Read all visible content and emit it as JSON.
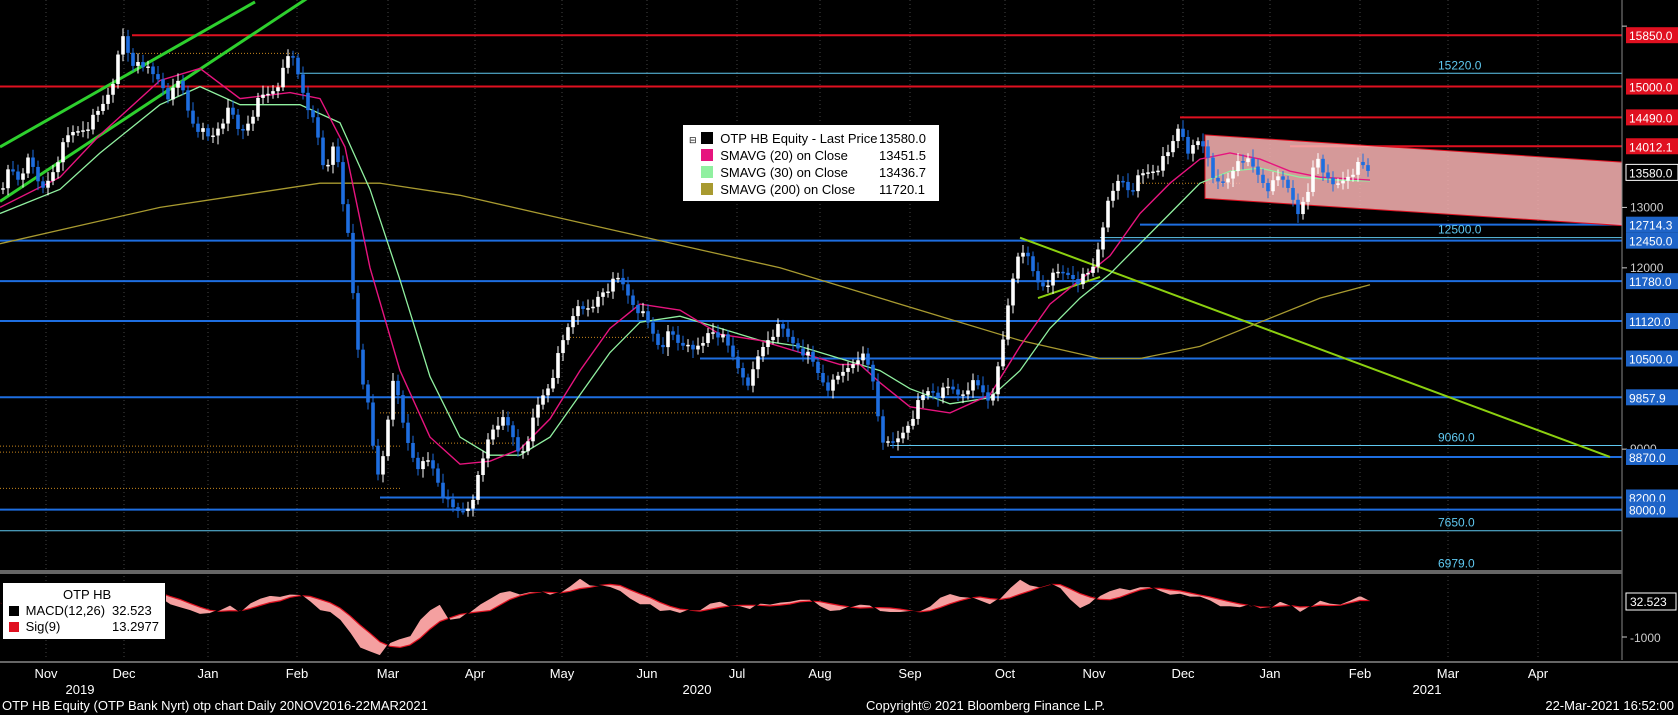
{
  "chart_data": {
    "type": "candlestick",
    "ylim": [
      7000,
      16300
    ],
    "ytick_values": [
      13000,
      12000,
      9000
    ],
    "ytick_labels": [
      "13000",
      "12000",
      "9000"
    ],
    "x_months": [
      "Nov",
      "Dec",
      "Jan",
      "Feb",
      "Mar",
      "Apr",
      "May",
      "Jun",
      "Jul",
      "Aug",
      "Sep",
      "Oct",
      "Nov",
      "Dec",
      "Jan",
      "Feb",
      "Mar",
      "Apr"
    ],
    "x_years": [
      "2019",
      "2020",
      "2021"
    ],
    "price_labels_right": [
      {
        "value": 15850.0,
        "label": "15850.0",
        "color": "#e01020"
      },
      {
        "value": 15000.0,
        "label": "15000.0",
        "color": "#e01020"
      },
      {
        "value": 14490.0,
        "label": "14490.0",
        "color": "#e01020"
      },
      {
        "value": 14012.1,
        "label": "14012.1",
        "color": "#e01020"
      },
      {
        "value": 13580.0,
        "label": "13580.0",
        "color": "#ffffff"
      },
      {
        "value": 12714.3,
        "label": "12714.3",
        "color": "#1e64c8"
      },
      {
        "value": 12450.0,
        "label": "12450.0",
        "color": "#1e64c8"
      },
      {
        "value": 11780.0,
        "label": "11780.0",
        "color": "#1e64c8"
      },
      {
        "value": 11120.0,
        "label": "11120.0",
        "color": "#1e64c8"
      },
      {
        "value": 10500.0,
        "label": "10500.0",
        "color": "#1e64c8"
      },
      {
        "value": 9857.9,
        "label": "9857.9",
        "color": "#1e64c8"
      },
      {
        "value": 8870.0,
        "label": "8870.0",
        "color": "#1e64c8"
      },
      {
        "value": 8200.0,
        "label": "8200.0",
        "color": "#1e64c8"
      },
      {
        "value": 8000.0,
        "label": "8000.0",
        "color": "#1e64c8"
      }
    ],
    "inline_labels": [
      {
        "value": 15220.0,
        "label": "15220.0"
      },
      {
        "value": 12500.0,
        "label": "12500.0"
      },
      {
        "value": 9060.0,
        "label": "9060.0"
      },
      {
        "value": 7650.0,
        "label": "7650.0"
      },
      {
        "value": 6979.0,
        "label": "6979.0"
      }
    ],
    "legend": [
      {
        "name": "OTP HB Equity - Last Price",
        "value": "13580.0",
        "color": "#000000"
      },
      {
        "name": "SMAVG (20)  on Close",
        "value": "13451.5",
        "color": "#e6147e"
      },
      {
        "name": "SMAVG (30)  on Close",
        "value": "13436.7",
        "color": "#90f0a0"
      },
      {
        "name": "SMAVG (200)  on Close",
        "value": "11720.1",
        "color": "#a89a30"
      }
    ],
    "close_path": [
      [
        0,
        13300
      ],
      [
        10,
        13600
      ],
      [
        20,
        13400
      ],
      [
        30,
        14000
      ],
      [
        40,
        13200
      ],
      [
        50,
        13500
      ],
      [
        60,
        13900
      ],
      [
        70,
        14200
      ],
      [
        80,
        14300
      ],
      [
        90,
        14400
      ],
      [
        100,
        14600
      ],
      [
        108,
        14900
      ],
      [
        115,
        15200
      ],
      [
        120,
        15600
      ],
      [
        125,
        15900
      ],
      [
        130,
        15300
      ],
      [
        140,
        15500
      ],
      [
        150,
        15200
      ],
      [
        160,
        15100
      ],
      [
        170,
        14800
      ],
      [
        180,
        15100
      ],
      [
        190,
        14500
      ],
      [
        200,
        14300
      ],
      [
        210,
        14100
      ],
      [
        220,
        14400
      ],
      [
        230,
        14600
      ],
      [
        240,
        14200
      ],
      [
        250,
        14500
      ],
      [
        260,
        14800
      ],
      [
        270,
        14900
      ],
      [
        280,
        15100
      ],
      [
        285,
        15300
      ],
      [
        290,
        15550
      ],
      [
        295,
        15400
      ],
      [
        300,
        15100
      ],
      [
        310,
        14600
      ],
      [
        320,
        14000
      ],
      [
        325,
        13500
      ],
      [
        330,
        13900
      ],
      [
        335,
        14200
      ],
      [
        340,
        13300
      ],
      [
        345,
        12800
      ],
      [
        350,
        12400
      ],
      [
        352,
        11800
      ],
      [
        356,
        11000
      ],
      [
        360,
        10400
      ],
      [
        365,
        10000
      ],
      [
        370,
        9500
      ],
      [
        375,
        8700
      ],
      [
        380,
        8500
      ],
      [
        385,
        9200
      ],
      [
        390,
        9800
      ],
      [
        395,
        10200
      ],
      [
        400,
        9600
      ],
      [
        410,
        9000
      ],
      [
        420,
        8700
      ],
      [
        430,
        8800
      ],
      [
        440,
        8400
      ],
      [
        450,
        8000
      ],
      [
        460,
        7950
      ],
      [
        470,
        8100
      ],
      [
        480,
        8600
      ],
      [
        490,
        9300
      ],
      [
        500,
        9500
      ],
      [
        510,
        9300
      ],
      [
        520,
        8900
      ],
      [
        530,
        9300
      ],
      [
        540,
        9800
      ],
      [
        550,
        10100
      ],
      [
        560,
        10600
      ],
      [
        570,
        11100
      ],
      [
        580,
        11500
      ],
      [
        590,
        11200
      ],
      [
        600,
        11600
      ],
      [
        610,
        11700
      ],
      [
        620,
        11800
      ],
      [
        630,
        11500
      ],
      [
        640,
        11300
      ],
      [
        650,
        11000
      ],
      [
        660,
        10700
      ],
      [
        670,
        10900
      ],
      [
        680,
        10700
      ],
      [
        690,
        10800
      ],
      [
        700,
        10600
      ],
      [
        710,
        11000
      ],
      [
        720,
        10900
      ],
      [
        730,
        10600
      ],
      [
        740,
        10300
      ],
      [
        750,
        10100
      ],
      [
        760,
        10600
      ],
      [
        770,
        10900
      ],
      [
        780,
        11000
      ],
      [
        790,
        10800
      ],
      [
        800,
        10700
      ],
      [
        810,
        10500
      ],
      [
        820,
        10200
      ],
      [
        830,
        10000
      ],
      [
        840,
        10200
      ],
      [
        850,
        10400
      ],
      [
        860,
        10600
      ],
      [
        870,
        10300
      ],
      [
        875,
        10000
      ],
      [
        880,
        9300
      ],
      [
        885,
        9100
      ],
      [
        890,
        9000
      ],
      [
        900,
        9200
      ],
      [
        910,
        9500
      ],
      [
        920,
        9800
      ],
      [
        930,
        10000
      ],
      [
        940,
        9900
      ],
      [
        950,
        10000
      ],
      [
        960,
        9900
      ],
      [
        970,
        10100
      ],
      [
        980,
        10000
      ],
      [
        990,
        9800
      ],
      [
        1000,
        10400
      ],
      [
        1005,
        11000
      ],
      [
        1010,
        11600
      ],
      [
        1015,
        12000
      ],
      [
        1020,
        12400
      ],
      [
        1025,
        12300
      ],
      [
        1030,
        12000
      ],
      [
        1040,
        11700
      ],
      [
        1050,
        11800
      ],
      [
        1060,
        11900
      ],
      [
        1070,
        11900
      ],
      [
        1080,
        11800
      ],
      [
        1090,
        11900
      ],
      [
        1095,
        12100
      ],
      [
        1100,
        12500
      ],
      [
        1105,
        12900
      ],
      [
        1110,
        13100
      ],
      [
        1115,
        13300
      ],
      [
        1120,
        13500
      ],
      [
        1130,
        13300
      ],
      [
        1140,
        13500
      ],
      [
        1150,
        13600
      ],
      [
        1160,
        13700
      ],
      [
        1170,
        13900
      ],
      [
        1175,
        14200
      ],
      [
        1180,
        14400
      ],
      [
        1185,
        14100
      ],
      [
        1190,
        13900
      ],
      [
        1200,
        14100
      ],
      [
        1210,
        13800
      ],
      [
        1215,
        13400
      ],
      [
        1220,
        13300
      ],
      [
        1230,
        13500
      ],
      [
        1240,
        13900
      ],
      [
        1250,
        13700
      ],
      [
        1260,
        13500
      ],
      [
        1270,
        13300
      ],
      [
        1280,
        13500
      ],
      [
        1290,
        13300
      ],
      [
        1300,
        12900
      ],
      [
        1310,
        13300
      ],
      [
        1315,
        13900
      ],
      [
        1320,
        13800
      ],
      [
        1330,
        13300
      ],
      [
        1340,
        13400
      ],
      [
        1350,
        13600
      ],
      [
        1360,
        13700
      ],
      [
        1370,
        13580
      ]
    ],
    "sma20_path": [
      [
        0,
        13000
      ],
      [
        60,
        13500
      ],
      [
        100,
        14200
      ],
      [
        160,
        15100
      ],
      [
        200,
        15300
      ],
      [
        240,
        14800
      ],
      [
        290,
        14900
      ],
      [
        320,
        14800
      ],
      [
        345,
        14000
      ],
      [
        370,
        12000
      ],
      [
        400,
        10300
      ],
      [
        430,
        9200
      ],
      [
        460,
        8750
      ],
      [
        490,
        8800
      ],
      [
        520,
        9000
      ],
      [
        550,
        9500
      ],
      [
        580,
        10300
      ],
      [
        610,
        11000
      ],
      [
        640,
        11400
      ],
      [
        680,
        11300
      ],
      [
        720,
        10900
      ],
      [
        760,
        10800
      ],
      [
        800,
        10600
      ],
      [
        840,
        10400
      ],
      [
        860,
        10400
      ],
      [
        880,
        10100
      ],
      [
        910,
        9700
      ],
      [
        950,
        9600
      ],
      [
        990,
        9900
      ],
      [
        1020,
        10700
      ],
      [
        1050,
        11400
      ],
      [
        1080,
        11800
      ],
      [
        1110,
        12200
      ],
      [
        1140,
        12900
      ],
      [
        1170,
        13400
      ],
      [
        1200,
        13800
      ],
      [
        1230,
        13900
      ],
      [
        1260,
        13800
      ],
      [
        1290,
        13600
      ],
      [
        1320,
        13500
      ],
      [
        1370,
        13451.5
      ]
    ],
    "sma30_path": [
      [
        0,
        12900
      ],
      [
        60,
        13300
      ],
      [
        100,
        13900
      ],
      [
        160,
        14700
      ],
      [
        200,
        15000
      ],
      [
        240,
        14700
      ],
      [
        300,
        14700
      ],
      [
        340,
        14400
      ],
      [
        370,
        13300
      ],
      [
        400,
        11800
      ],
      [
        430,
        10200
      ],
      [
        460,
        9200
      ],
      [
        490,
        8900
      ],
      [
        520,
        8900
      ],
      [
        550,
        9200
      ],
      [
        580,
        9900
      ],
      [
        610,
        10600
      ],
      [
        640,
        11100
      ],
      [
        680,
        11200
      ],
      [
        720,
        11000
      ],
      [
        760,
        10800
      ],
      [
        800,
        10700
      ],
      [
        840,
        10500
      ],
      [
        880,
        10300
      ],
      [
        910,
        10000
      ],
      [
        950,
        9750
      ],
      [
        990,
        9850
      ],
      [
        1020,
        10300
      ],
      [
        1050,
        11000
      ],
      [
        1080,
        11500
      ],
      [
        1110,
        11900
      ],
      [
        1140,
        12400
      ],
      [
        1170,
        12900
      ],
      [
        1200,
        13400
      ],
      [
        1230,
        13600
      ],
      [
        1260,
        13650
      ],
      [
        1300,
        13500
      ],
      [
        1340,
        13450
      ],
      [
        1370,
        13436.7
      ]
    ],
    "sma200_path": [
      [
        0,
        12400
      ],
      [
        80,
        12700
      ],
      [
        160,
        13000
      ],
      [
        240,
        13200
      ],
      [
        320,
        13400
      ],
      [
        380,
        13400
      ],
      [
        460,
        13200
      ],
      [
        540,
        12900
      ],
      [
        620,
        12600
      ],
      [
        700,
        12300
      ],
      [
        780,
        12000
      ],
      [
        860,
        11600
      ],
      [
        940,
        11200
      ],
      [
        1020,
        10800
      ],
      [
        1100,
        10500
      ],
      [
        1140,
        10500
      ],
      [
        1200,
        10700
      ],
      [
        1260,
        11100
      ],
      [
        1320,
        11500
      ],
      [
        1370,
        11720.1
      ]
    ],
    "macd_label": "OTP HB",
    "macd_series": [
      {
        "name": "MACD(12,26)",
        "value": "32.523",
        "color": "#000000"
      },
      {
        "name": "Sig(9)",
        "value": "13.2977",
        "color": "#e01020"
      }
    ],
    "macd_right_label": "32.523",
    "macd_ytick": "-1000"
  },
  "footer": {
    "left": "OTP HB Equity (OTP Bank Nyrt) otp chart  Daily 20NOV2016-22MAR2021",
    "center": "Copyright© 2021 Bloomberg Finance L.P.",
    "right": "22-Mar-2021 16:52:00"
  }
}
